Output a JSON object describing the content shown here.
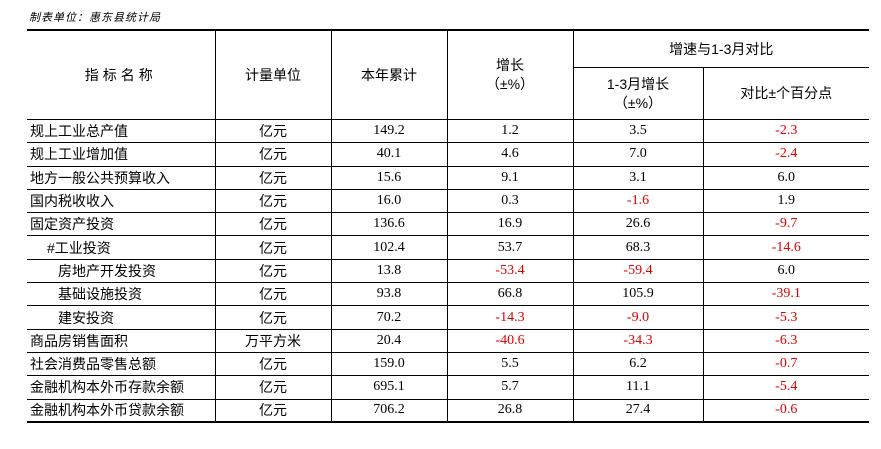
{
  "source_note": "制表单位：惠东县统计局",
  "headers": {
    "indicator": "指标名称",
    "unit": "计量单位",
    "ytd": "本年累计",
    "growth_line1": "增长",
    "growth_line2": "（±%）",
    "compare_group": "增速与1-3月对比",
    "q1_growth_line1": "1-3月增长",
    "q1_growth_line2": "（±%）",
    "diff_points": "对比±个百分点"
  },
  "rows": [
    {
      "name": "规上工业总产值",
      "indent": 0,
      "unit": "亿元",
      "ytd": "149.2",
      "growth": "1.2",
      "q1": "3.5",
      "diff": "-2.3"
    },
    {
      "name": "规上工业增加值",
      "indent": 0,
      "unit": "亿元",
      "ytd": "40.1",
      "growth": "4.6",
      "q1": "7.0",
      "diff": "-2.4"
    },
    {
      "name": "地方一般公共预算收入",
      "indent": 0,
      "unit": "亿元",
      "ytd": "15.6",
      "growth": "9.1",
      "q1": "3.1",
      "diff": "6.0"
    },
    {
      "name": "国内税收收入",
      "indent": 0,
      "unit": "亿元",
      "ytd": "16.0",
      "growth": "0.3",
      "q1": "-1.6",
      "diff": "1.9"
    },
    {
      "name": "固定资产投资",
      "indent": 0,
      "unit": "亿元",
      "ytd": "136.6",
      "growth": "16.9",
      "q1": "26.6",
      "diff": "-9.7"
    },
    {
      "name": "#工业投资",
      "indent": 1,
      "unit": "亿元",
      "ytd": "102.4",
      "growth": "53.7",
      "q1": "68.3",
      "diff": "-14.6"
    },
    {
      "name": "房地产开发投资",
      "indent": 2,
      "unit": "亿元",
      "ytd": "13.8",
      "growth": "-53.4",
      "q1": "-59.4",
      "diff": "6.0"
    },
    {
      "name": "基础设施投资",
      "indent": 2,
      "unit": "亿元",
      "ytd": "93.8",
      "growth": "66.8",
      "q1": "105.9",
      "diff": "-39.1"
    },
    {
      "name": "建安投资",
      "indent": 2,
      "unit": "亿元",
      "ytd": "70.2",
      "growth": "-14.3",
      "q1": "-9.0",
      "diff": "-5.3"
    },
    {
      "name": "商品房销售面积",
      "indent": 0,
      "unit": "万平方米",
      "ytd": "20.4",
      "growth": "-40.6",
      "q1": "-34.3",
      "diff": "-6.3"
    },
    {
      "name": "社会消费品零售总额",
      "indent": 0,
      "unit": "亿元",
      "ytd": "159.0",
      "growth": "5.5",
      "q1": "6.2",
      "diff": "-0.7"
    },
    {
      "name": "金融机构本外币存款余额",
      "indent": 0,
      "unit": "亿元",
      "ytd": "695.1",
      "growth": "5.7",
      "q1": "11.1",
      "diff": "-5.4"
    },
    {
      "name": "金融机构本外币贷款余额",
      "indent": 0,
      "unit": "亿元",
      "ytd": "706.2",
      "growth": "26.8",
      "q1": "27.4",
      "diff": "-0.6"
    }
  ],
  "colors": {
    "negative": "#e00000",
    "text": "#000000"
  }
}
